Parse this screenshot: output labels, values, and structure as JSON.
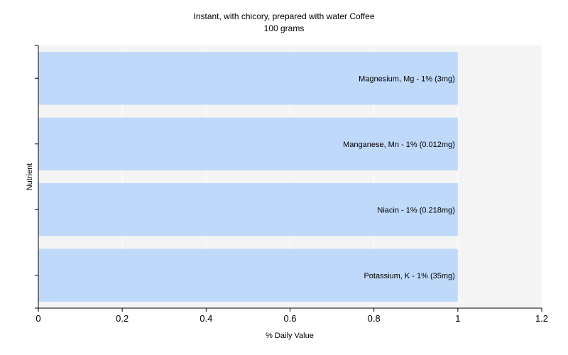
{
  "chart_data": {
    "type": "bar",
    "orientation": "horizontal",
    "title": "Instant, with chicory, prepared with water Coffee",
    "subtitle": "100 grams",
    "xlabel": "% Daily Value",
    "ylabel": "Nutrient",
    "xlim": [
      0,
      1.2
    ],
    "xticks": [
      "0",
      "0.2",
      "0.4",
      "0.6",
      "0.8",
      "1",
      "1.2"
    ],
    "grid": true,
    "categories": [
      "Magnesium, Mg - 1% (3mg)",
      "Manganese, Mn - 1% (0.012mg)",
      "Niacin - 1% (0.218mg)",
      "Potassium, K - 1% (35mg)"
    ],
    "values": [
      1,
      1,
      1,
      1
    ],
    "colors": {
      "bar": "#bfd9fa",
      "plot_bg": "#f4f4f4",
      "grid": "#ffffff",
      "axis": "#000000"
    }
  }
}
